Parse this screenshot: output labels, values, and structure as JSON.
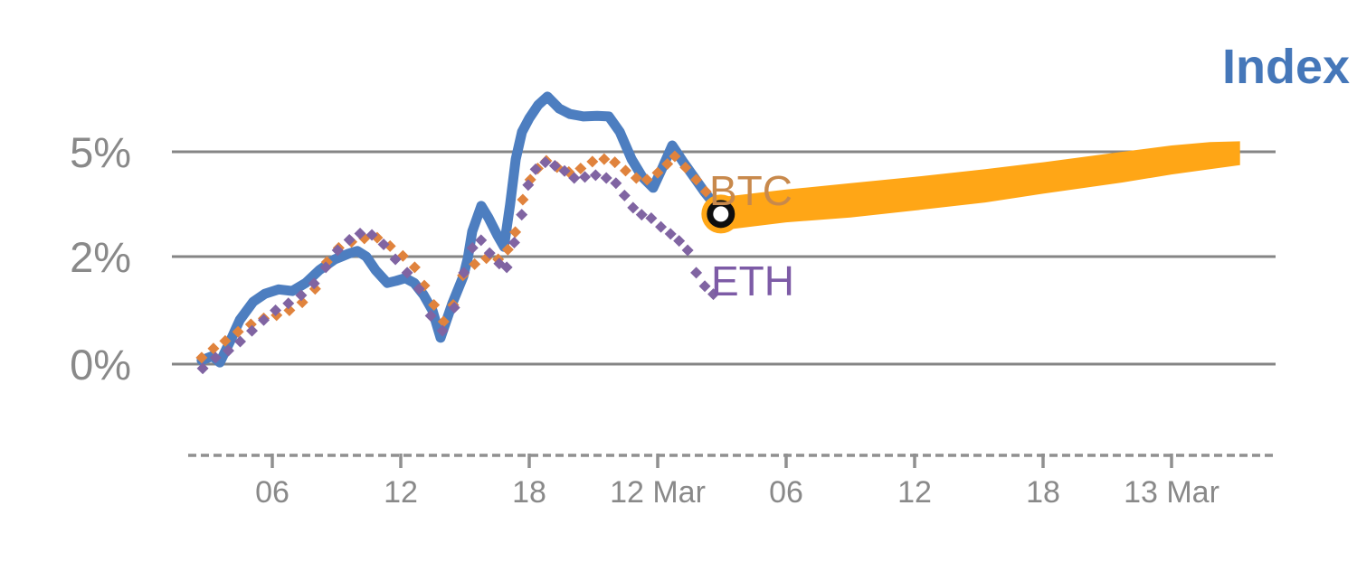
{
  "chart_data": {
    "type": "line",
    "description": "Intraday percent-change lines for Index, BTC and ETH with an orange forecast band for BTC and an open-circle marker at the current point",
    "y_axis": {
      "unit": "%",
      "ticks": [
        {
          "label": "5%",
          "value": 5
        },
        {
          "label": "2%",
          "value": 2
        },
        {
          "label": "0%",
          "value": 0
        }
      ]
    },
    "x_axis": {
      "ticks": [
        {
          "label": "06",
          "hour": 6
        },
        {
          "label": "12",
          "hour": 12
        },
        {
          "label": "18",
          "hour": 18
        },
        {
          "label": "12 Mar",
          "hour": 24
        },
        {
          "label": "06",
          "hour": 30
        },
        {
          "label": "12",
          "hour": 36
        },
        {
          "label": "18",
          "hour": 42
        },
        {
          "label": "13 Mar",
          "hour": 48
        }
      ]
    },
    "series": [
      {
        "name": "Index",
        "style": "solid",
        "color": "#4d7ec0",
        "label_color": "#4577b9",
        "points": [
          [
            2.7,
            0.07
          ],
          [
            3.2,
            0.15
          ],
          [
            3.55,
            0.03
          ],
          [
            4.06,
            0.45
          ],
          [
            4.48,
            0.82
          ],
          [
            5.11,
            1.16
          ],
          [
            5.66,
            1.31
          ],
          [
            6.3,
            1.39
          ],
          [
            6.93,
            1.36
          ],
          [
            7.56,
            1.51
          ],
          [
            8.2,
            1.75
          ],
          [
            8.92,
            1.95
          ],
          [
            9.55,
            2.08
          ],
          [
            9.97,
            2.16
          ],
          [
            10.39,
            2.0
          ],
          [
            10.82,
            1.75
          ],
          [
            11.37,
            1.51
          ],
          [
            11.79,
            1.55
          ],
          [
            12.21,
            1.6
          ],
          [
            12.63,
            1.51
          ],
          [
            13.06,
            1.29
          ],
          [
            13.48,
            1.0
          ],
          [
            13.86,
            0.49
          ],
          [
            14.41,
            1.13
          ],
          [
            14.92,
            1.63
          ],
          [
            15.13,
            1.97
          ],
          [
            15.34,
            2.72
          ],
          [
            15.76,
            3.45
          ],
          [
            16.1,
            3.11
          ],
          [
            16.52,
            2.6
          ],
          [
            16.82,
            2.28
          ],
          [
            17.11,
            3.5
          ],
          [
            17.37,
            4.79
          ],
          [
            17.66,
            5.57
          ],
          [
            18.0,
            5.96
          ],
          [
            18.42,
            6.34
          ],
          [
            18.85,
            6.58
          ],
          [
            19.4,
            6.24
          ],
          [
            19.9,
            6.08
          ],
          [
            20.54,
            6.01
          ],
          [
            21.17,
            6.03
          ],
          [
            21.72,
            6.01
          ],
          [
            22.23,
            5.57
          ],
          [
            22.78,
            4.79
          ],
          [
            23.28,
            4.28
          ],
          [
            23.79,
            3.97
          ],
          [
            24.21,
            4.53
          ],
          [
            24.68,
            5.18
          ],
          [
            25.18,
            4.72
          ],
          [
            25.69,
            4.28
          ],
          [
            26.2,
            3.84
          ],
          [
            26.58,
            3.55
          ],
          [
            26.92,
            3.24
          ]
        ]
      },
      {
        "name": "BTC",
        "style": "dotted",
        "color": "#e0833d",
        "label_color": "#c8894c",
        "points": [
          [
            2.7,
            0.12
          ],
          [
            3.25,
            0.29
          ],
          [
            3.8,
            0.43
          ],
          [
            4.4,
            0.6
          ],
          [
            5.0,
            0.74
          ],
          [
            5.6,
            0.85
          ],
          [
            6.2,
            0.91
          ],
          [
            6.8,
            1.0
          ],
          [
            7.4,
            1.15
          ],
          [
            8.0,
            1.4
          ],
          [
            8.55,
            1.9
          ],
          [
            9.1,
            2.25
          ],
          [
            9.7,
            2.42
          ],
          [
            10.3,
            2.52
          ],
          [
            10.9,
            2.54
          ],
          [
            11.5,
            2.3
          ],
          [
            12.1,
            2.02
          ],
          [
            12.65,
            1.8
          ],
          [
            13.1,
            1.46
          ],
          [
            13.55,
            1.1
          ],
          [
            14.0,
            0.79
          ],
          [
            14.45,
            1.1
          ],
          [
            14.9,
            1.65
          ],
          [
            15.45,
            1.86
          ],
          [
            16.0,
            1.97
          ],
          [
            16.55,
            1.95
          ],
          [
            17.0,
            2.2
          ],
          [
            17.35,
            2.7
          ],
          [
            17.7,
            3.63
          ],
          [
            18.05,
            4.2
          ],
          [
            18.4,
            4.52
          ],
          [
            18.8,
            4.74
          ],
          [
            19.3,
            4.56
          ],
          [
            19.85,
            4.42
          ],
          [
            20.4,
            4.52
          ],
          [
            20.95,
            4.72
          ],
          [
            21.5,
            4.79
          ],
          [
            22.0,
            4.7
          ],
          [
            22.5,
            4.46
          ],
          [
            23.0,
            4.25
          ],
          [
            23.5,
            4.2
          ],
          [
            24.0,
            4.4
          ],
          [
            24.45,
            4.65
          ],
          [
            24.8,
            4.87
          ],
          [
            25.3,
            4.55
          ],
          [
            25.8,
            4.2
          ],
          [
            26.25,
            3.86
          ],
          [
            26.7,
            3.55
          ]
        ]
      },
      {
        "name": "ETH",
        "style": "dotted",
        "color": "#8064a2",
        "label_color": "#7d5ba6",
        "points": [
          [
            2.75,
            -0.08
          ],
          [
            3.35,
            0.12
          ],
          [
            3.95,
            0.25
          ],
          [
            4.5,
            0.42
          ],
          [
            5.05,
            0.62
          ],
          [
            5.6,
            0.82
          ],
          [
            6.15,
            1.0
          ],
          [
            6.75,
            1.13
          ],
          [
            7.35,
            1.28
          ],
          [
            7.95,
            1.5
          ],
          [
            8.5,
            1.8
          ],
          [
            9.05,
            2.18
          ],
          [
            9.6,
            2.48
          ],
          [
            10.1,
            2.66
          ],
          [
            10.65,
            2.62
          ],
          [
            11.2,
            2.35
          ],
          [
            11.75,
            1.95
          ],
          [
            12.3,
            1.7
          ],
          [
            12.85,
            1.4
          ],
          [
            13.4,
            0.9
          ],
          [
            13.95,
            0.62
          ],
          [
            14.5,
            1.05
          ],
          [
            14.95,
            1.7
          ],
          [
            15.35,
            2.25
          ],
          [
            15.75,
            2.47
          ],
          [
            16.15,
            2.1
          ],
          [
            16.6,
            1.87
          ],
          [
            16.95,
            1.8
          ],
          [
            17.3,
            2.4
          ],
          [
            17.65,
            3.2
          ],
          [
            17.95,
            4.05
          ],
          [
            18.3,
            4.5
          ],
          [
            18.75,
            4.7
          ],
          [
            19.2,
            4.6
          ],
          [
            19.65,
            4.45
          ],
          [
            20.1,
            4.25
          ],
          [
            20.6,
            4.28
          ],
          [
            21.1,
            4.33
          ],
          [
            21.6,
            4.25
          ],
          [
            22.05,
            4.1
          ],
          [
            22.45,
            3.75
          ],
          [
            22.85,
            3.4
          ],
          [
            23.25,
            3.2
          ],
          [
            23.7,
            3.1
          ],
          [
            24.15,
            2.85
          ],
          [
            24.6,
            2.65
          ],
          [
            25.0,
            2.45
          ],
          [
            25.4,
            2.18
          ],
          [
            25.8,
            1.7
          ],
          [
            26.2,
            1.45
          ],
          [
            26.6,
            1.3
          ]
        ]
      }
    ],
    "forecast_band": {
      "for_series": "BTC",
      "color": "#ffa616",
      "points_top_bottom": [
        [
          26.95,
          3.7,
          2.75
        ],
        [
          30.0,
          3.92,
          2.98
        ],
        [
          33.0,
          4.1,
          3.12
        ],
        [
          36.0,
          4.28,
          3.32
        ],
        [
          39.3,
          4.5,
          3.55
        ],
        [
          42.0,
          4.7,
          3.8
        ],
        [
          45.7,
          5.0,
          4.12
        ],
        [
          48.0,
          5.18,
          4.35
        ],
        [
          49.8,
          5.28,
          4.5
        ],
        [
          51.2,
          5.3,
          4.62
        ]
      ]
    },
    "current_marker": {
      "shape": "open-circle",
      "hour": 26.95,
      "value": 3.22,
      "halo_color": "#ffa616",
      "ring_color": "#0e0e0e"
    },
    "grid": {
      "line_color": "#858585",
      "axis_dash_color": "#909090",
      "tick_label_color": "#898989"
    }
  }
}
